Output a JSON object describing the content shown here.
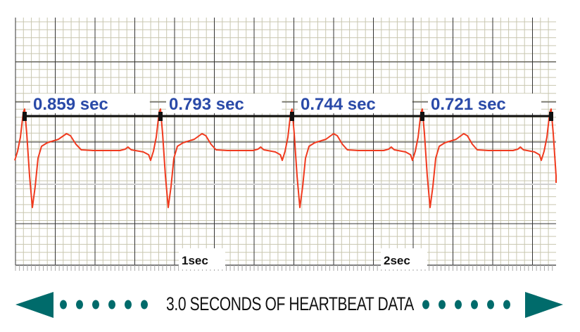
{
  "colors": {
    "grid_minor": "#c9c7b0",
    "grid_major": "#333333",
    "trace": "#f03a1e",
    "label": "#2a4aa8",
    "accent": "#006b6b"
  },
  "intervals": [
    {
      "label": "0.859 sec",
      "value": 0.859
    },
    {
      "label": "0.793 sec",
      "value": 0.793
    },
    {
      "label": "0.744 sec",
      "value": 0.744
    },
    {
      "label": "0.721 sec",
      "value": 0.721
    }
  ],
  "time_markers": [
    {
      "label": "1sec",
      "value": 1
    },
    {
      "label": "2sec",
      "value": 2
    }
  ],
  "caption": {
    "text": "3.0 SECONDS OF HEARTBEAT DATA",
    "left_icon": "arrow-left-icon",
    "right_icon": "arrow-right-icon"
  }
}
